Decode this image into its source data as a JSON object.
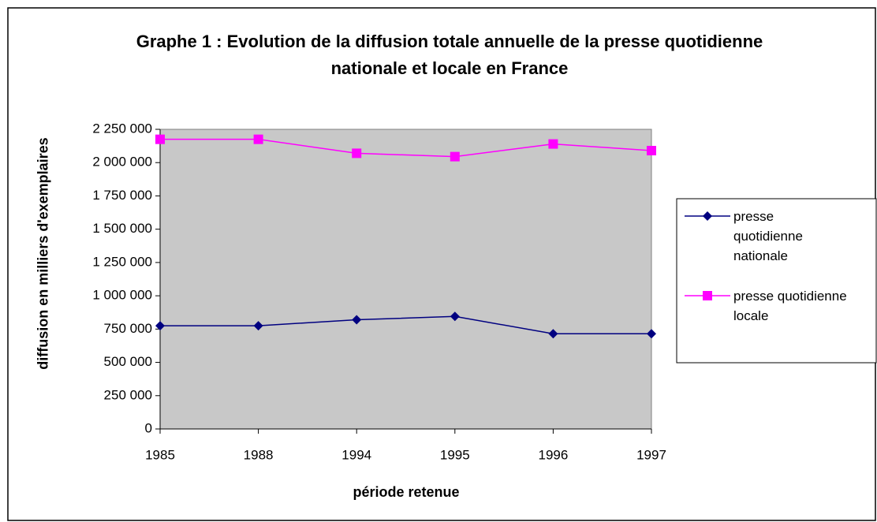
{
  "chart_data": {
    "type": "line",
    "title": "Graphe 1 : Evolution  de la diffusion totale annuelle de la presse quotidienne nationale et locale en France",
    "x_label": "période retenue",
    "y_label": "diffusion en milliers d'exemplaires",
    "categories": [
      "1985",
      "1988",
      "1994",
      "1995",
      "1996",
      "1997"
    ],
    "series": [
      {
        "name": "presse quotidienne nationale",
        "color": "#000080",
        "marker": "diamond",
        "values": [
          775000,
          775000,
          820000,
          845000,
          715000,
          715000
        ]
      },
      {
        "name": "presse quotidienne locale",
        "color": "#ff00ff",
        "marker": "square",
        "values": [
          2175000,
          2175000,
          2070000,
          2045000,
          2140000,
          2090000
        ]
      }
    ],
    "ylim": [
      0,
      2250000
    ],
    "yticks": [
      0,
      {
        "value": 250000,
        "label": "250 000"
      },
      {
        "value": 500000,
        "label": "500 000"
      },
      {
        "value": 750000,
        "label": "750 000"
      },
      {
        "value": 1000000,
        "label": "1 000 000"
      },
      {
        "value": 1250000,
        "label": "1 250 000"
      },
      {
        "value": 1500000,
        "label": "1 500 000"
      },
      {
        "value": 1750000,
        "label": "1 750 000"
      },
      {
        "value": 2000000,
        "label": "2 000 000"
      },
      {
        "value": 2250000,
        "label": "2 250 000"
      }
    ],
    "plot_background": "#c8c8c8",
    "legend": "right"
  }
}
